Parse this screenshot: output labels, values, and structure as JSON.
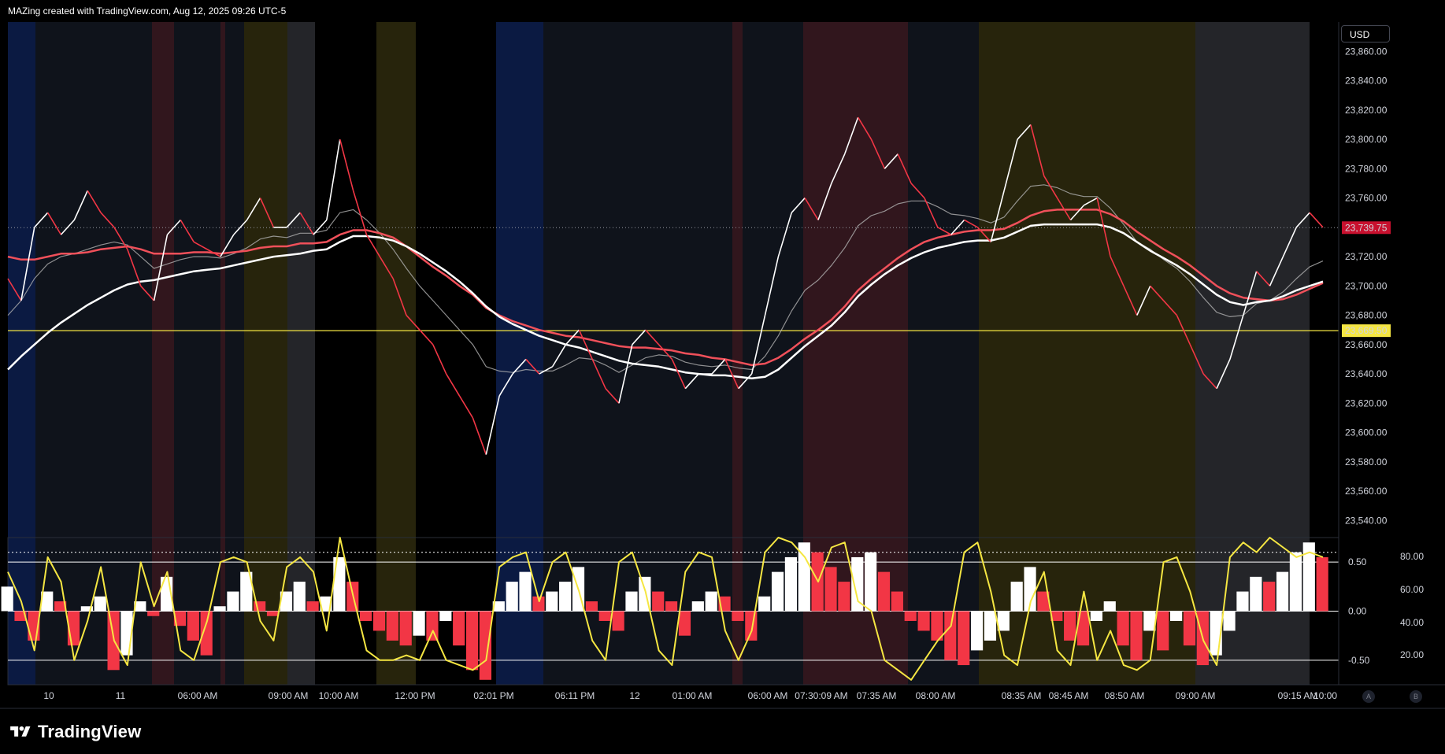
{
  "header": {
    "text": "MAZing created with TradingView.com, Aug 12, 2025 09:26 UTC-5"
  },
  "currency": "USD",
  "brand": {
    "name": "TradingView"
  },
  "corner_buttons": [
    "A",
    "B"
  ],
  "colors": {
    "background": "#000000",
    "price_line": "#ffffff",
    "down_candle": "#f23645",
    "ema_red": "#f0505a",
    "ema_white": "#ffffff",
    "level_line": "#f5e642",
    "last_price_badge": "#c8102e",
    "oscillator_yellow": "#f5e642",
    "session_blue": "#0d1f4d",
    "session_red": "#3a1a22",
    "session_olive": "#2e2a0e",
    "session_gray": "#2a2b30",
    "session_dark": "#121620"
  },
  "chart_data": [
    {
      "type": "line",
      "title": "",
      "ylabel": "",
      "y_ticks": [
        "23,860.00",
        "23,840.00",
        "23,820.00",
        "23,800.00",
        "23,780.00",
        "23,760.00",
        "23,740.00",
        "23,720.00",
        "23,700.00",
        "23,680.00",
        "23,660.00",
        "23,640.00",
        "23,620.00",
        "23,600.00",
        "23,580.00",
        "23,560.00",
        "23,540.00"
      ],
      "ylim": [
        23530,
        23880
      ],
      "x_ticks": [
        "10",
        "11",
        "06:00 AM",
        "09:00 AM",
        "10:00 AM",
        "12:00 PM",
        "02:01 PM",
        "06:11 PM",
        "12",
        "01:00 AM",
        "06:00 AM",
        "07:30:09 AM",
        "07:35 AM",
        "08:00 AM",
        "08:35 AM",
        "08:45 AM",
        "08:50 AM",
        "09:00 AM",
        "09:15 AM",
        "10:00"
      ],
      "last_price": "23,739.75",
      "level_value": "23,669.50",
      "grid": false,
      "series": [
        {
          "values": [
            23705,
            23690,
            23740,
            23750,
            23735,
            23745,
            23765,
            23750,
            23740,
            23725,
            23700,
            23690,
            23735,
            23745,
            23730,
            23725,
            23720,
            23735,
            23745,
            23760,
            23740,
            23740,
            23750,
            23735,
            23745,
            23800,
            23765,
            23735,
            23720,
            23705,
            23680,
            23670,
            23660,
            23640,
            23625,
            23610,
            23585,
            23625,
            23640,
            23650,
            23640,
            23645,
            23660,
            23670,
            23650,
            23630,
            23620,
            23660,
            23670,
            23660,
            23650,
            23630,
            23640,
            23640,
            23650,
            23630,
            23640,
            23680,
            23720,
            23750,
            23760,
            23745,
            23770,
            23790,
            23815,
            23800,
            23780,
            23790,
            23770,
            23760,
            23740,
            23735,
            23745,
            23740,
            23730,
            23765,
            23800,
            23810,
            23775,
            23760,
            23745,
            23755,
            23760,
            23720,
            23700,
            23680,
            23700,
            23690,
            23680,
            23660,
            23640,
            23630,
            23650,
            23680,
            23710,
            23700,
            23720,
            23740,
            23750,
            23740
          ]
        },
        {
          "values": [
            23680,
            23690,
            23705,
            23715,
            23720,
            23722,
            23725,
            23728,
            23730,
            23728,
            23720,
            23712,
            23715,
            23718,
            23720,
            23720,
            23719,
            23722,
            23726,
            23732,
            23734,
            23733,
            23736,
            23736,
            23738,
            23750,
            23752,
            23745,
            23736,
            23725,
            23712,
            23700,
            23690,
            23680,
            23670,
            23660,
            23645,
            23642,
            23641,
            23643,
            23642,
            23642,
            23646,
            23651,
            23650,
            23646,
            23641,
            23646,
            23651,
            23653,
            23652,
            23648,
            23646,
            23645,
            23646,
            23644,
            23643,
            23652,
            23666,
            23683,
            23697,
            23704,
            23714,
            23726,
            23741,
            23748,
            23751,
            23756,
            23758,
            23758,
            23754,
            23749,
            23748,
            23746,
            23743,
            23747,
            23758,
            23768,
            23769,
            23767,
            23763,
            23761,
            23761,
            23753,
            23742,
            23730,
            23725,
            23718,
            23712,
            23703,
            23692,
            23682,
            23679,
            23680,
            23688,
            23690,
            23696,
            23705,
            23713,
            23717
          ]
        },
        {
          "values": [
            23720,
            23718,
            23718,
            23720,
            23722,
            23722,
            23723,
            23725,
            23726,
            23727,
            23725,
            23722,
            23722,
            23722,
            23723,
            23723,
            23722,
            23723,
            23724,
            23726,
            23727,
            23727,
            23729,
            23729,
            23730,
            23735,
            23738,
            23738,
            23736,
            23733,
            23727,
            23720,
            23713,
            23707,
            23700,
            23694,
            23685,
            23680,
            23676,
            23673,
            23670,
            23668,
            23666,
            23665,
            23663,
            23661,
            23659,
            23658,
            23658,
            23657,
            23656,
            23654,
            23653,
            23651,
            23650,
            23648,
            23646,
            23647,
            23651,
            23657,
            23664,
            23670,
            23677,
            23686,
            23697,
            23705,
            23712,
            23719,
            23725,
            23730,
            23733,
            23735,
            23737,
            23738,
            23738,
            23739,
            23743,
            23748,
            23751,
            23752,
            23752,
            23752,
            23752,
            23749,
            23744,
            23737,
            23731,
            23725,
            23720,
            23714,
            23707,
            23700,
            23695,
            23692,
            23691,
            23690,
            23691,
            23694,
            23698,
            23702
          ]
        },
        {
          "values": [
            23643,
            23652,
            23660,
            23668,
            23675,
            23681,
            23687,
            23692,
            23697,
            23701,
            23703,
            23704,
            23706,
            23708,
            23710,
            23711,
            23712,
            23714,
            23716,
            23718,
            23720,
            23721,
            23722,
            23724,
            23725,
            23730,
            23734,
            23734,
            23733,
            23731,
            23727,
            23722,
            23716,
            23710,
            23703,
            23695,
            23686,
            23679,
            23674,
            23670,
            23666,
            23663,
            23660,
            23658,
            23655,
            23652,
            23649,
            23647,
            23646,
            23645,
            23643,
            23641,
            23640,
            23639,
            23639,
            23638,
            23637,
            23638,
            23643,
            23651,
            23659,
            23666,
            23673,
            23682,
            23693,
            23701,
            23708,
            23714,
            23719,
            23723,
            23726,
            23728,
            23730,
            23731,
            23731,
            23733,
            23737,
            23741,
            23742,
            23742,
            23742,
            23742,
            23742,
            23740,
            23736,
            23730,
            23724,
            23719,
            23714,
            23708,
            23701,
            23694,
            23689,
            23687,
            23689,
            23690,
            23693,
            23697,
            23700,
            23703
          ]
        }
      ]
    },
    {
      "type": "bar",
      "title": "",
      "y_ticks_left": [
        "0.50",
        "0.00",
        "-0.50"
      ],
      "y_ticks_right": [
        "80.00",
        "60.00",
        "40.00",
        "20.00"
      ],
      "ylim": [
        -0.75,
        0.75
      ],
      "oscillator_values": [
        0.25,
        -0.1,
        -0.3,
        0.2,
        0.1,
        -0.35,
        0.05,
        0.15,
        -0.6,
        -0.45,
        0.1,
        -0.05,
        0.35,
        -0.15,
        -0.3,
        -0.45,
        0.05,
        0.2,
        0.4,
        0.1,
        -0.05,
        0.2,
        0.3,
        0.1,
        0.15,
        0.55,
        0.3,
        -0.1,
        -0.2,
        -0.3,
        -0.35,
        -0.25,
        -0.3,
        -0.1,
        -0.35,
        -0.6,
        -0.7,
        0.1,
        0.3,
        0.4,
        0.15,
        0.2,
        0.3,
        0.45,
        0.1,
        -0.1,
        -0.2,
        0.2,
        0.35,
        0.2,
        0.1,
        -0.25,
        0.1,
        0.2,
        0.15,
        -0.1,
        -0.3,
        0.15,
        0.4,
        0.55,
        0.7,
        0.6,
        0.45,
        0.3,
        0.55,
        0.6,
        0.4,
        0.2,
        -0.1,
        -0.2,
        -0.3,
        -0.5,
        -0.55,
        -0.4,
        -0.3,
        -0.2,
        0.3,
        0.45,
        0.2,
        -0.1,
        -0.3,
        -0.35,
        -0.1,
        0.1,
        -0.35,
        -0.5,
        -0.2,
        -0.4,
        -0.1,
        -0.35,
        -0.55,
        -0.45,
        -0.2,
        0.2,
        0.35,
        0.3,
        0.4,
        0.6,
        0.7,
        0.55
      ],
      "signal_values": [
        0.4,
        0.1,
        -0.4,
        0.55,
        0.3,
        -0.5,
        -0.1,
        0.45,
        -0.3,
        -0.55,
        0.5,
        0.05,
        0.4,
        -0.4,
        -0.5,
        -0.1,
        0.5,
        0.55,
        0.5,
        -0.1,
        -0.3,
        0.45,
        0.55,
        0.4,
        -0.2,
        0.75,
        0.15,
        -0.4,
        -0.5,
        -0.5,
        -0.45,
        -0.5,
        -0.2,
        -0.5,
        -0.55,
        -0.6,
        -0.5,
        0.45,
        0.55,
        0.6,
        0.1,
        0.5,
        0.6,
        0.2,
        -0.3,
        -0.5,
        0.5,
        0.6,
        0.2,
        -0.4,
        -0.55,
        0.4,
        0.6,
        0.55,
        -0.2,
        -0.5,
        -0.2,
        0.6,
        0.75,
        0.7,
        0.55,
        0.3,
        0.65,
        0.7,
        0.1,
        0.0,
        -0.5,
        -0.6,
        -0.7,
        -0.5,
        -0.3,
        -0.15,
        0.6,
        0.7,
        0.2,
        -0.45,
        -0.55,
        0.1,
        0.4,
        -0.4,
        -0.55,
        0.2,
        -0.5,
        -0.2,
        -0.55,
        -0.6,
        -0.5,
        0.5,
        0.55,
        0.2,
        -0.3,
        -0.55,
        0.55,
        0.7,
        0.6,
        0.75,
        0.65,
        0.55,
        0.6,
        0.55
      ]
    }
  ]
}
